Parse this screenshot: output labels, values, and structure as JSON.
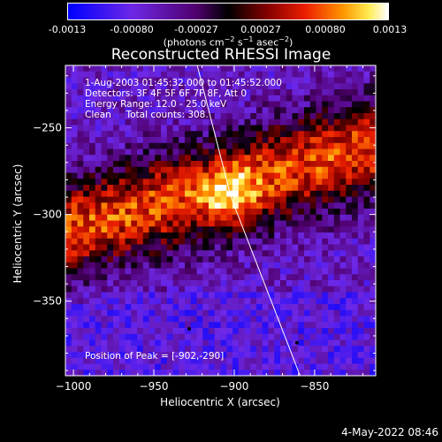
{
  "colorbar": {
    "tick_labels": [
      "-0.0013",
      "-0.00080",
      "-0.00027",
      "0.00027",
      "0.00080",
      "0.0013"
    ],
    "min": -0.0013,
    "max": 0.0013
  },
  "chart_data": {
    "type": "heatmap",
    "title": "Reconstructed RHESSI Image",
    "xlabel": "Heliocentric X (arcsec)",
    "ylabel": "Heliocentric Y (arcsec)",
    "xlim": [
      -1005,
      -812
    ],
    "ylim": [
      -393,
      -214
    ],
    "x_ticks": [
      -1000,
      -950,
      -900,
      -850
    ],
    "y_ticks": [
      -250,
      -300,
      -350
    ],
    "info_lines": [
      "1-Aug-2003 01:45:32.000 to 01:45:52.000",
      "Detectors: 3F 4F 5F 6F 7F 8F, Att 0",
      "Energy Range: 12.0 - 25.0 keV",
      "Clean     Total counts: 308."
    ],
    "peak_label": "Position of Peak = [-902,-290]",
    "peak": [
      -902,
      -290
    ],
    "colormap": "rainbow-hot",
    "limb_line": [
      [
        -923,
        -214
      ],
      [
        -902,
        -290
      ],
      [
        -859,
        -393
      ]
    ],
    "markers": [
      [
        -928,
        -366
      ],
      [
        -861,
        -374
      ]
    ]
  },
  "footer": {
    "datestamp": "4-May-2022 08:46"
  }
}
